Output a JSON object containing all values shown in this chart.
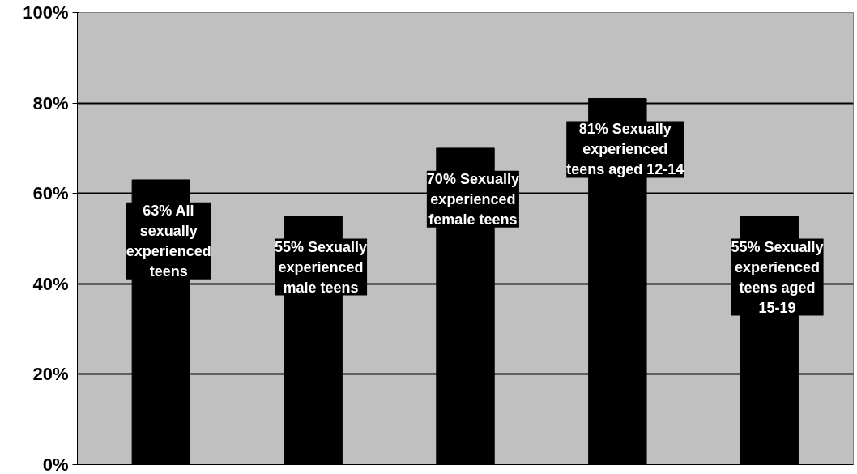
{
  "chart_data": {
    "type": "bar",
    "categories": [
      null,
      null,
      null,
      null,
      null
    ],
    "values": [
      63,
      55,
      70,
      81,
      55
    ],
    "color": "#000000",
    "value_labels": [
      "63% All\nsexually\nexperienced\nteens",
      "55% Sexually\nexperienced\nmale teens",
      "70% Sexually\nexperienced\nfemale teens",
      "81% Sexually\nexperienced\nteens aged 12-14",
      "55% Sexually\nexperienced\nteens aged\n15-19"
    ],
    "ylim": [
      0,
      100
    ],
    "yticks": [
      {
        "value": 0,
        "label": "0%"
      },
      {
        "value": 20,
        "label": "20%"
      },
      {
        "value": 40,
        "label": "40%"
      },
      {
        "value": 60,
        "label": "60%"
      },
      {
        "value": 80,
        "label": "80%"
      },
      {
        "value": 100,
        "label": "100%"
      }
    ],
    "grid": "y"
  }
}
